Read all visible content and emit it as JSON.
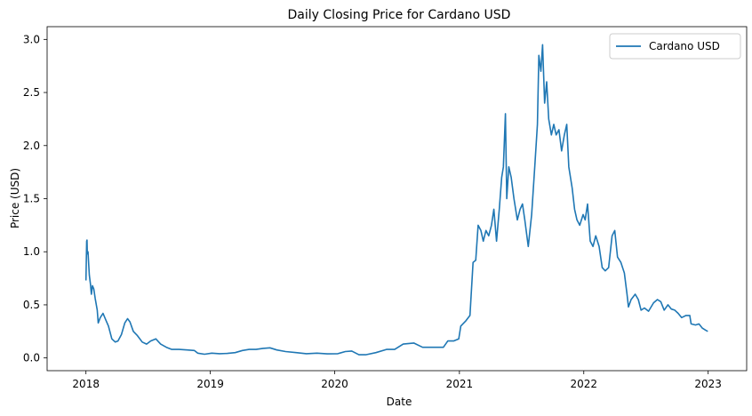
{
  "chart_data": {
    "type": "line",
    "title": "Daily Closing Price for Cardano USD",
    "xlabel": "Date",
    "ylabel": "Price (USD)",
    "x_ticks": [
      "2018",
      "2019",
      "2020",
      "2021",
      "2022",
      "2023"
    ],
    "y_ticks": [
      "0.0",
      "0.5",
      "1.0",
      "1.5",
      "2.0",
      "2.5",
      "3.0"
    ],
    "xlim": [
      "2017-09-09",
      "2023-04-24"
    ],
    "ylim": [
      -0.12,
      3.12
    ],
    "grid": false,
    "legend_position": "top-right",
    "series": [
      {
        "name": "Cardano USD",
        "color": "#1f77b4",
        "points": [
          [
            "2018-01-01",
            0.73
          ],
          [
            "2018-01-03",
            1.1
          ],
          [
            "2018-01-04",
            1.11
          ],
          [
            "2018-01-05",
            0.98
          ],
          [
            "2018-01-07",
            1.0
          ],
          [
            "2018-01-09",
            0.88
          ],
          [
            "2018-01-11",
            0.78
          ],
          [
            "2018-01-14",
            0.7
          ],
          [
            "2018-01-17",
            0.6
          ],
          [
            "2018-01-20",
            0.68
          ],
          [
            "2018-01-24",
            0.65
          ],
          [
            "2018-01-28",
            0.56
          ],
          [
            "2018-02-03",
            0.45
          ],
          [
            "2018-02-06",
            0.33
          ],
          [
            "2018-02-12",
            0.38
          ],
          [
            "2018-02-20",
            0.42
          ],
          [
            "2018-02-28",
            0.36
          ],
          [
            "2018-03-08",
            0.3
          ],
          [
            "2018-03-18",
            0.18
          ],
          [
            "2018-03-28",
            0.15
          ],
          [
            "2018-04-05",
            0.16
          ],
          [
            "2018-04-15",
            0.22
          ],
          [
            "2018-04-25",
            0.33
          ],
          [
            "2018-05-03",
            0.37
          ],
          [
            "2018-05-10",
            0.34
          ],
          [
            "2018-05-20",
            0.25
          ],
          [
            "2018-06-01",
            0.21
          ],
          [
            "2018-06-15",
            0.15
          ],
          [
            "2018-06-28",
            0.13
          ],
          [
            "2018-07-10",
            0.16
          ],
          [
            "2018-07-25",
            0.18
          ],
          [
            "2018-08-08",
            0.13
          ],
          [
            "2018-08-25",
            0.1
          ],
          [
            "2018-09-10",
            0.08
          ],
          [
            "2018-10-01",
            0.08
          ],
          [
            "2018-10-25",
            0.075
          ],
          [
            "2018-11-15",
            0.07
          ],
          [
            "2018-11-25",
            0.045
          ],
          [
            "2018-12-15",
            0.035
          ],
          [
            "2019-01-05",
            0.045
          ],
          [
            "2019-01-28",
            0.04
          ],
          [
            "2019-02-20",
            0.042
          ],
          [
            "2019-03-15",
            0.05
          ],
          [
            "2019-04-05",
            0.07
          ],
          [
            "2019-04-25",
            0.08
          ],
          [
            "2019-05-15",
            0.08
          ],
          [
            "2019-06-05",
            0.09
          ],
          [
            "2019-06-25",
            0.095
          ],
          [
            "2019-07-15",
            0.075
          ],
          [
            "2019-08-10",
            0.06
          ],
          [
            "2019-09-10",
            0.05
          ],
          [
            "2019-10-10",
            0.04
          ],
          [
            "2019-11-10",
            0.045
          ],
          [
            "2019-12-10",
            0.038
          ],
          [
            "2020-01-10",
            0.04
          ],
          [
            "2020-02-01",
            0.06
          ],
          [
            "2020-02-20",
            0.065
          ],
          [
            "2020-03-12",
            0.03
          ],
          [
            "2020-04-01",
            0.03
          ],
          [
            "2020-05-01",
            0.05
          ],
          [
            "2020-06-01",
            0.08
          ],
          [
            "2020-06-25",
            0.08
          ],
          [
            "2020-07-20",
            0.13
          ],
          [
            "2020-08-20",
            0.14
          ],
          [
            "2020-09-15",
            0.1
          ],
          [
            "2020-10-15",
            0.1
          ],
          [
            "2020-11-15",
            0.1
          ],
          [
            "2020-11-28",
            0.16
          ],
          [
            "2020-12-15",
            0.16
          ],
          [
            "2020-12-30",
            0.18
          ],
          [
            "2021-01-05",
            0.3
          ],
          [
            "2021-01-20",
            0.35
          ],
          [
            "2021-02-01",
            0.4
          ],
          [
            "2021-02-10",
            0.9
          ],
          [
            "2021-02-18",
            0.92
          ],
          [
            "2021-02-25",
            1.25
          ],
          [
            "2021-03-05",
            1.2
          ],
          [
            "2021-03-12",
            1.1
          ],
          [
            "2021-03-20",
            1.2
          ],
          [
            "2021-03-28",
            1.15
          ],
          [
            "2021-04-05",
            1.25
          ],
          [
            "2021-04-12",
            1.4
          ],
          [
            "2021-04-20",
            1.1
          ],
          [
            "2021-04-28",
            1.4
          ],
          [
            "2021-05-05",
            1.7
          ],
          [
            "2021-05-10",
            1.8
          ],
          [
            "2021-05-16",
            2.3
          ],
          [
            "2021-05-20",
            1.5
          ],
          [
            "2021-05-26",
            1.8
          ],
          [
            "2021-06-02",
            1.7
          ],
          [
            "2021-06-10",
            1.5
          ],
          [
            "2021-06-20",
            1.3
          ],
          [
            "2021-06-28",
            1.4
          ],
          [
            "2021-07-05",
            1.45
          ],
          [
            "2021-07-12",
            1.3
          ],
          [
            "2021-07-22",
            1.05
          ],
          [
            "2021-08-01",
            1.35
          ],
          [
            "2021-08-10",
            1.8
          ],
          [
            "2021-08-18",
            2.2
          ],
          [
            "2021-08-22",
            2.85
          ],
          [
            "2021-08-28",
            2.7
          ],
          [
            "2021-09-02",
            2.95
          ],
          [
            "2021-09-08",
            2.4
          ],
          [
            "2021-09-14",
            2.6
          ],
          [
            "2021-09-20",
            2.25
          ],
          [
            "2021-09-28",
            2.1
          ],
          [
            "2021-10-05",
            2.2
          ],
          [
            "2021-10-12",
            2.1
          ],
          [
            "2021-10-20",
            2.15
          ],
          [
            "2021-10-28",
            1.95
          ],
          [
            "2021-11-05",
            2.1
          ],
          [
            "2021-11-12",
            2.2
          ],
          [
            "2021-11-18",
            1.8
          ],
          [
            "2021-11-28",
            1.6
          ],
          [
            "2021-12-05",
            1.4
          ],
          [
            "2021-12-12",
            1.3
          ],
          [
            "2021-12-20",
            1.25
          ],
          [
            "2021-12-30",
            1.35
          ],
          [
            "2022-01-05",
            1.3
          ],
          [
            "2022-01-12",
            1.45
          ],
          [
            "2022-01-20",
            1.1
          ],
          [
            "2022-01-28",
            1.05
          ],
          [
            "2022-02-05",
            1.15
          ],
          [
            "2022-02-15",
            1.05
          ],
          [
            "2022-02-24",
            0.85
          ],
          [
            "2022-03-05",
            0.82
          ],
          [
            "2022-03-15",
            0.85
          ],
          [
            "2022-03-25",
            1.15
          ],
          [
            "2022-04-02",
            1.2
          ],
          [
            "2022-04-10",
            0.95
          ],
          [
            "2022-04-20",
            0.9
          ],
          [
            "2022-04-30",
            0.8
          ],
          [
            "2022-05-08",
            0.6
          ],
          [
            "2022-05-12",
            0.48
          ],
          [
            "2022-05-20",
            0.55
          ],
          [
            "2022-06-01",
            0.6
          ],
          [
            "2022-06-10",
            0.55
          ],
          [
            "2022-06-18",
            0.45
          ],
          [
            "2022-06-28",
            0.47
          ],
          [
            "2022-07-10",
            0.44
          ],
          [
            "2022-07-25",
            0.52
          ],
          [
            "2022-08-05",
            0.55
          ],
          [
            "2022-08-15",
            0.53
          ],
          [
            "2022-08-25",
            0.45
          ],
          [
            "2022-09-05",
            0.5
          ],
          [
            "2022-09-15",
            0.46
          ],
          [
            "2022-09-25",
            0.45
          ],
          [
            "2022-10-05",
            0.42
          ],
          [
            "2022-10-15",
            0.38
          ],
          [
            "2022-10-28",
            0.4
          ],
          [
            "2022-11-08",
            0.4
          ],
          [
            "2022-11-12",
            0.32
          ],
          [
            "2022-11-25",
            0.31
          ],
          [
            "2022-12-05",
            0.32
          ],
          [
            "2022-12-15",
            0.28
          ],
          [
            "2022-12-25",
            0.26
          ],
          [
            "2022-12-31",
            0.25
          ]
        ]
      }
    ]
  }
}
